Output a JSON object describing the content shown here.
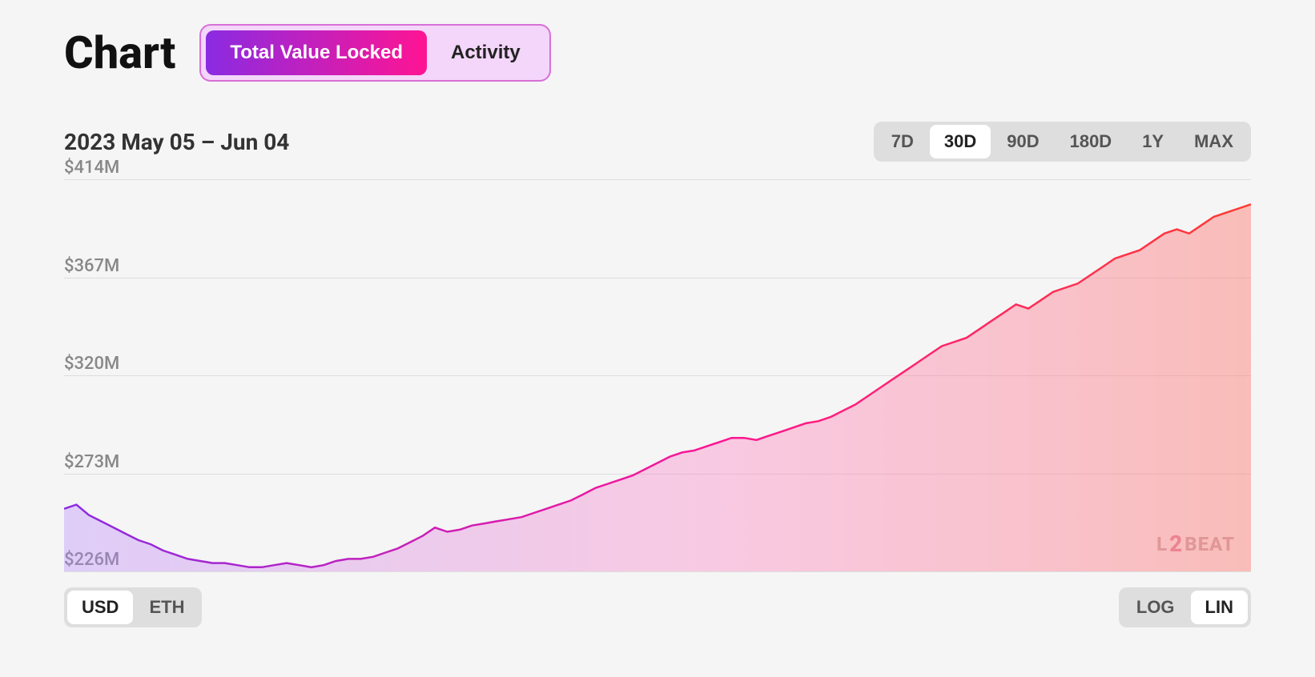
{
  "header": {
    "title": "Chart",
    "tabs": [
      {
        "label": "Total Value Locked",
        "active": true
      },
      {
        "label": "Activity",
        "active": false
      }
    ],
    "tab_gradient": {
      "from": "#8a2be2",
      "to": "#ff1493"
    },
    "tab_container_bg": "#f3d6f9",
    "tab_container_border": "#d86fd8"
  },
  "controls": {
    "date_range": "2023 May 05 – Jun 04",
    "ranges": [
      {
        "label": "7D",
        "active": false
      },
      {
        "label": "30D",
        "active": true
      },
      {
        "label": "90D",
        "active": false
      },
      {
        "label": "180D",
        "active": false
      },
      {
        "label": "1Y",
        "active": false
      },
      {
        "label": "MAX",
        "active": false
      }
    ]
  },
  "footer": {
    "currency": [
      {
        "label": "USD",
        "active": true
      },
      {
        "label": "ETH",
        "active": false
      }
    ],
    "scale": [
      {
        "label": "LOG",
        "active": false
      },
      {
        "label": "LIN",
        "active": true
      }
    ]
  },
  "watermark": {
    "prefix": "L",
    "heart": "2",
    "suffix": "BEAT"
  },
  "chart": {
    "type": "area",
    "ylim": [
      226,
      414
    ],
    "y_ticks": [
      226,
      273,
      320,
      367,
      414
    ],
    "y_tick_labels": [
      "$226M",
      "$273M",
      "$320M",
      "$367M",
      "$414M"
    ],
    "grid_color": "#dddddd",
    "label_color": "#888888",
    "label_fontsize": 22,
    "background": "#f5f5f5",
    "line_width": 2.5,
    "line_gradient": {
      "from": "#8a2be2",
      "mid": "#ff1493",
      "to": "#ff3b30"
    },
    "fill_gradient": {
      "from": "rgba(180,130,255,0.35)",
      "mid": "rgba(255,120,190,0.35)",
      "to": "rgba(255,120,110,0.45)"
    },
    "values": [
      256,
      258,
      253,
      250,
      247,
      244,
      241,
      239,
      236,
      234,
      232,
      231,
      230,
      230,
      229,
      228,
      228,
      229,
      230,
      229,
      228,
      229,
      231,
      232,
      232,
      233,
      235,
      237,
      240,
      243,
      247,
      245,
      246,
      248,
      249,
      250,
      251,
      252,
      254,
      256,
      258,
      260,
      263,
      266,
      268,
      270,
      272,
      275,
      278,
      281,
      283,
      284,
      286,
      288,
      290,
      290,
      289,
      291,
      293,
      295,
      297,
      298,
      300,
      303,
      306,
      310,
      314,
      318,
      322,
      326,
      330,
      334,
      336,
      338,
      342,
      346,
      350,
      354,
      352,
      356,
      360,
      362,
      364,
      368,
      372,
      376,
      378,
      380,
      384,
      388,
      390,
      388,
      392,
      396,
      398,
      400,
      402
    ]
  }
}
